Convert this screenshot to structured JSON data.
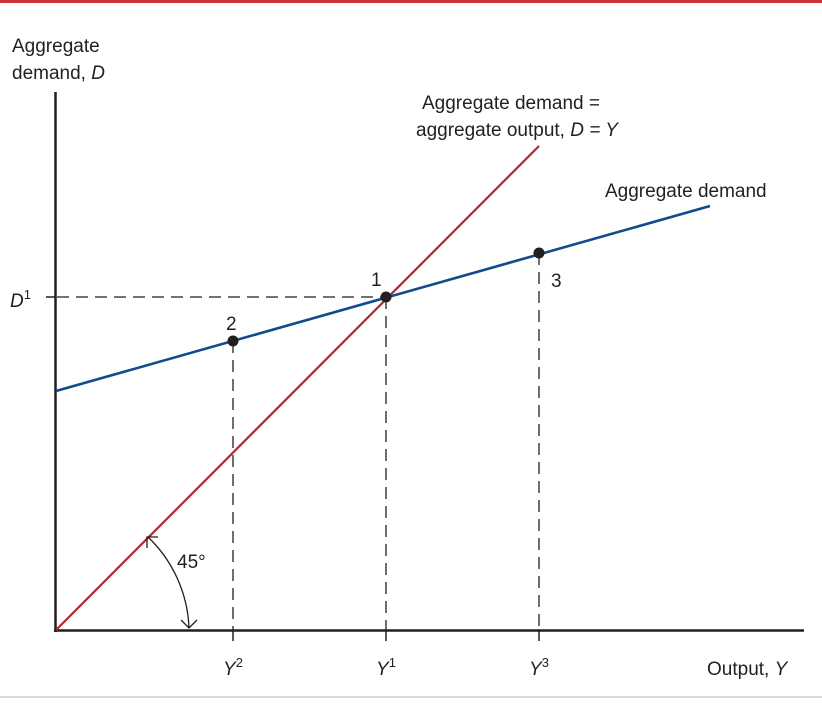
{
  "colors": {
    "frame_top": "#c9353a",
    "frame_bottom": "#d9d9d9",
    "axis": "#231f20",
    "forty_five_line": "#b5262c",
    "aggregate_demand_line": "#124a8c",
    "guide": "#231f20",
    "point": "#231f20"
  },
  "axes": {
    "y_label_line1": "Aggregate",
    "y_label_line2_text": "demand, ",
    "y_label_line2_var": "D",
    "x_label_text": "Output, ",
    "x_label_var": "Y"
  },
  "lines": {
    "forty_five_label_line1": "Aggregate demand =",
    "forty_five_label_line2_text": "aggregate output, ",
    "forty_five_label_line2_eq": "D = Y",
    "aggregate_demand_label": "Aggregate demand"
  },
  "angle_label": "45°",
  "ticks": {
    "d1_var": "D",
    "d1_sup": "1",
    "y2_var": "Y",
    "y2_sup": "2",
    "y1_var": "Y",
    "y1_sup": "1",
    "y3_var": "Y",
    "y3_sup": "3"
  },
  "points": {
    "p1": "1",
    "p2": "2",
    "p3": "3"
  }
}
